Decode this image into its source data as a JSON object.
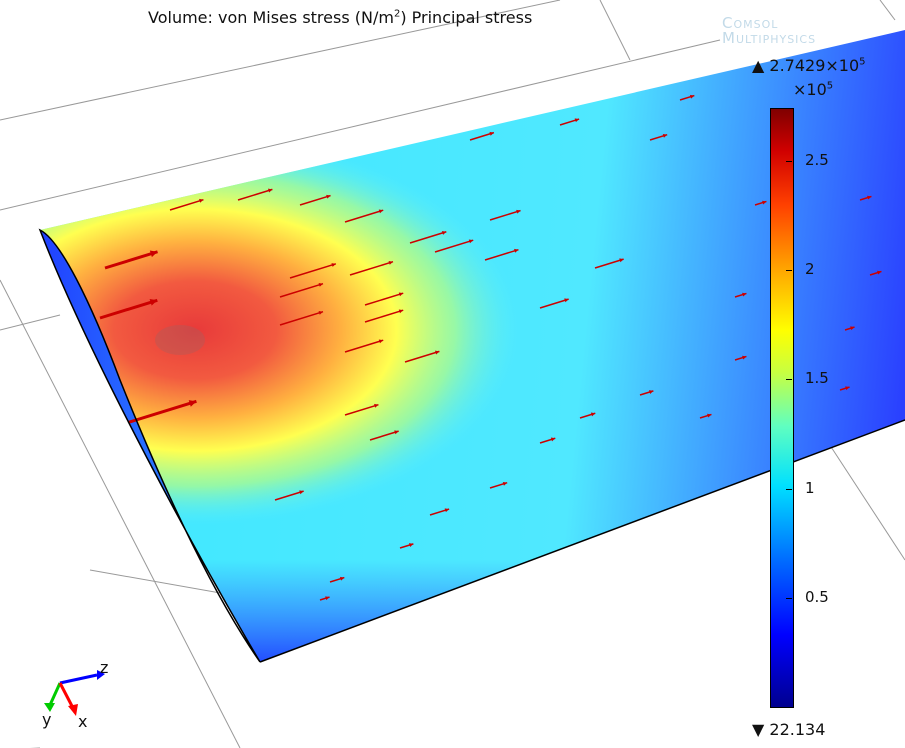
{
  "title": {
    "text": "Volume: von Mises stress (N/m",
    "sup": "2",
    "tail": ") Principal stress"
  },
  "watermark": [
    "Comsol",
    "Multiphysics"
  ],
  "colorbar": {
    "max_label": "2.7429×10",
    "max_exp": "5",
    "multiplier": "×10",
    "multiplier_exp": "5",
    "min_label": "22.134",
    "ticks": [
      "0.5",
      "1",
      "1.5",
      "2",
      "2.5"
    ],
    "max_icon": "triangle-up-icon",
    "min_icon": "triangle-down-icon",
    "colormap": "rainbow"
  },
  "axes_triad": {
    "x": "x",
    "y": "y",
    "z": "z",
    "x_color": "#ff0000",
    "y_color": "#00cc00",
    "z_color": "#0000ff"
  },
  "chart_data": {
    "type": "heatmap",
    "title": "Volume: von Mises stress (N/m^2) Principal stress",
    "colorbar_range": [
      22.134,
      274290
    ],
    "colorbar_ticks": [
      50000,
      100000,
      150000,
      200000,
      250000
    ],
    "colormap": "rainbow",
    "arrow_color": "#cc0000"
  }
}
